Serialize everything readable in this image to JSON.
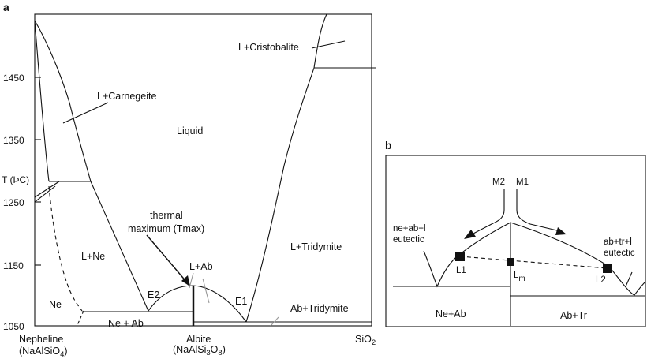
{
  "panel_a": {
    "letter": "a",
    "y_axis_label": "T (ÞC)",
    "y_ticks": [
      "1450",
      "1350",
      "1250",
      "1150",
      "1050"
    ],
    "x_labels": {
      "nepheline": "Nepheline",
      "nepheline_formula": "(NaAlSiO",
      "nepheline_sub": "4",
      "nepheline_close": ")",
      "albite": "Albite",
      "albite_formula_a": "(NaAlSi",
      "albite_sub_a": "3",
      "albite_formula_b": "O",
      "albite_sub_b": "8",
      "albite_close": ")",
      "silica": "SiO",
      "silica_sub": "2"
    },
    "fields": {
      "liquid": "Liquid",
      "l_carnegeite": "L+Carnegeite",
      "l_cristobalite": "L+Cristobalite",
      "l_ne": "L+Ne",
      "l_tridymite": "L+Tridymite",
      "ne": "Ne",
      "ne_ab": "Ne + Ab",
      "ab_tridymite": "Ab+Tridymite",
      "l_ab": "L+Ab",
      "thermal_max_1": "thermal",
      "thermal_max_2": "maximum (Tmax)",
      "e1": "E1",
      "e2": "E2"
    }
  },
  "panel_b": {
    "letter": "b",
    "m1": "M1",
    "m2": "M2",
    "left_eutectic_1": "ne+ab+l",
    "left_eutectic_2": "eutectic",
    "right_eutectic_1": "ab+tr+l",
    "right_eutectic_2": "eutectic",
    "l1": "L1",
    "l2": "L2",
    "lm": "L",
    "lm_sub": "m",
    "ne_ab": "Ne+Ab",
    "ab_tr": "Ab+Tr"
  }
}
